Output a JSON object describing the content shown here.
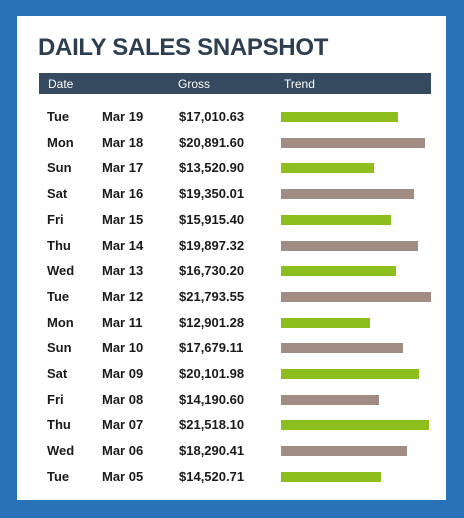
{
  "title": "DAILY SALES SNAPSHOT",
  "columns": {
    "date": "Date",
    "gross": "Gross",
    "trend": "Trend"
  },
  "colors": {
    "background": "#2a72b8",
    "header": "#354a5e",
    "title": "#2c3e50",
    "trend_green": "#8cbf1e",
    "trend_taupe": "#a08c82"
  },
  "trend_scale_max": 21793.55,
  "rows": [
    {
      "day": "Tue",
      "date": "Mar 19",
      "gross": "$17,010.63",
      "value": 17010.63,
      "trend_color": "green"
    },
    {
      "day": "Mon",
      "date": "Mar 18",
      "gross": "$20,891.60",
      "value": 20891.6,
      "trend_color": "taupe"
    },
    {
      "day": "Sun",
      "date": "Mar 17",
      "gross": "$13,520.90",
      "value": 13520.9,
      "trend_color": "green"
    },
    {
      "day": "Sat",
      "date": "Mar 16",
      "gross": "$19,350.01",
      "value": 19350.01,
      "trend_color": "taupe"
    },
    {
      "day": "Fri",
      "date": "Mar 15",
      "gross": "$15,915.40",
      "value": 15915.4,
      "trend_color": "green"
    },
    {
      "day": "Thu",
      "date": "Mar 14",
      "gross": "$19,897.32",
      "value": 19897.32,
      "trend_color": "taupe"
    },
    {
      "day": "Wed",
      "date": "Mar 13",
      "gross": "$16,730.20",
      "value": 16730.2,
      "trend_color": "green"
    },
    {
      "day": "Tue",
      "date": "Mar 12",
      "gross": "$21,793.55",
      "value": 21793.55,
      "trend_color": "taupe"
    },
    {
      "day": "Mon",
      "date": "Mar 11",
      "gross": "$12,901.28",
      "value": 12901.28,
      "trend_color": "green"
    },
    {
      "day": "Sun",
      "date": "Mar 10",
      "gross": "$17,679.11",
      "value": 17679.11,
      "trend_color": "taupe"
    },
    {
      "day": "Sat",
      "date": "Mar 09",
      "gross": "$20,101.98",
      "value": 20101.98,
      "trend_color": "green"
    },
    {
      "day": "Fri",
      "date": "Mar 08",
      "gross": "$14,190.60",
      "value": 14190.6,
      "trend_color": "taupe"
    },
    {
      "day": "Thu",
      "date": "Mar 07",
      "gross": "$21,518.10",
      "value": 21518.1,
      "trend_color": "green"
    },
    {
      "day": "Wed",
      "date": "Mar 06",
      "gross": "$18,290.41",
      "value": 18290.41,
      "trend_color": "taupe"
    },
    {
      "day": "Tue",
      "date": "Mar 05",
      "gross": "$14,520.71",
      "value": 14520.71,
      "trend_color": "green"
    }
  ]
}
